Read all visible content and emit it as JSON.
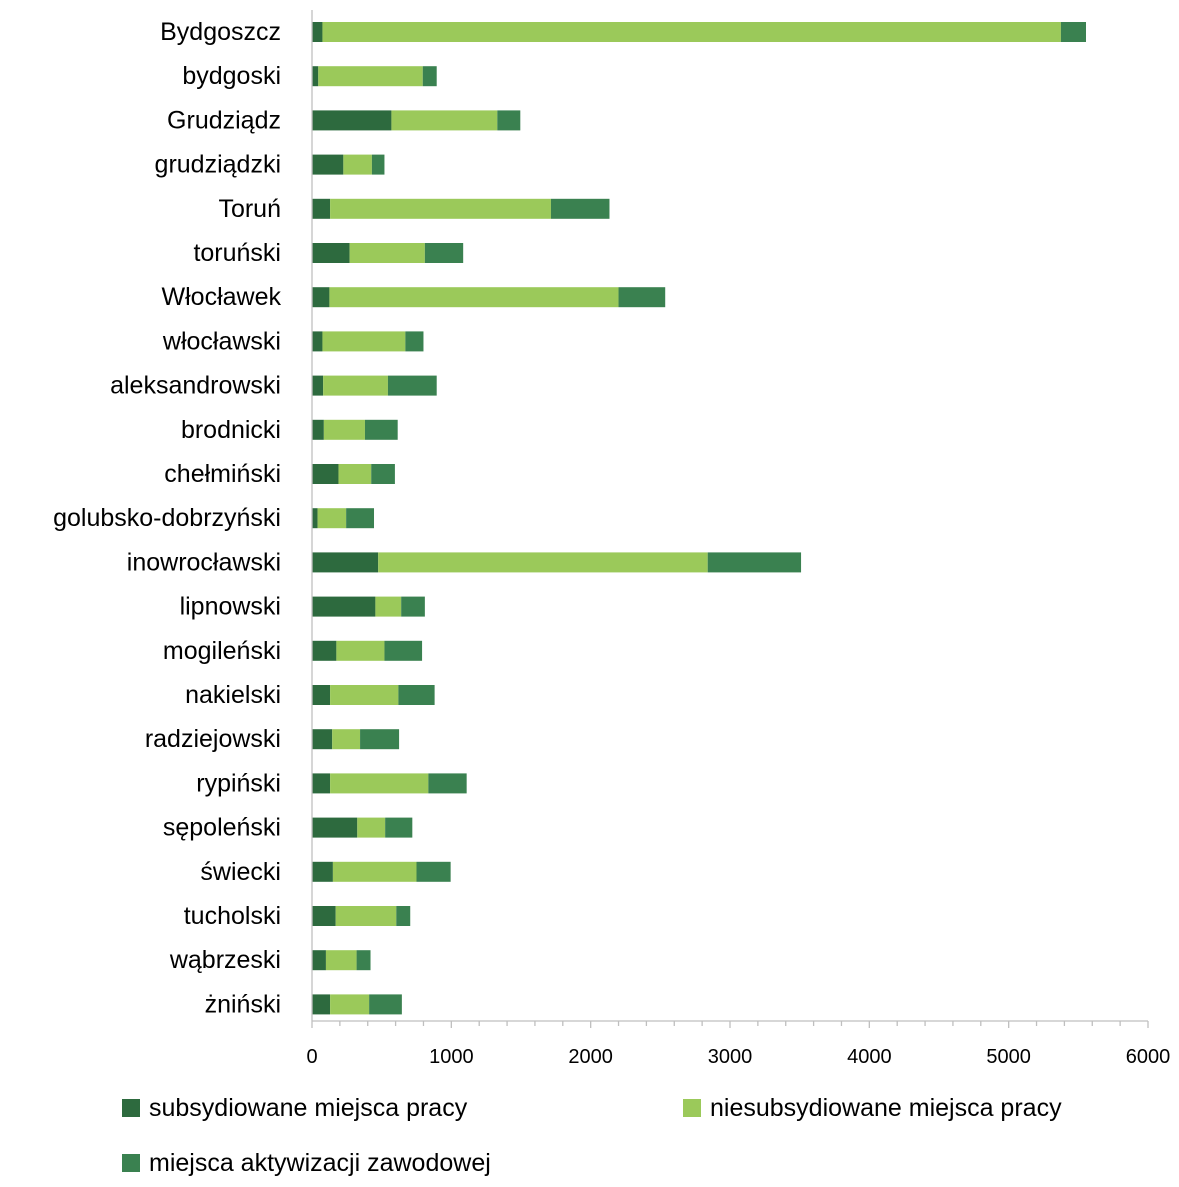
{
  "chart_data": {
    "type": "bar",
    "orientation": "horizontal",
    "stacked": true,
    "title": "",
    "xlabel": "",
    "ylabel": "",
    "xlim": [
      0,
      6000
    ],
    "xticks": [
      0,
      1000,
      2000,
      3000,
      4000,
      5000,
      6000
    ],
    "grid": false,
    "legend_position": "bottom",
    "categories": [
      "Bydgoszcz",
      "bydgoski",
      "Grudziądz",
      "grudziądzki",
      "Toruń",
      "toruński",
      "Włocławek",
      "włocławski",
      "aleksandrowski",
      "brodnicki",
      "chełmiński",
      "golubsko-dobrzyński",
      "inowrocławski",
      "lipnowski",
      "mogileński",
      "nakielski",
      "radziejowski",
      "rypiński",
      "sępoleński",
      "świecki",
      "tucholski",
      "wąbrzeski",
      "żniński"
    ],
    "series": [
      {
        "name": "subsydiowane miejsca pracy",
        "color": "#2d6a3e",
        "values": [
          75,
          45,
          570,
          225,
          130,
          270,
          125,
          75,
          80,
          85,
          190,
          40,
          475,
          455,
          175,
          130,
          145,
          130,
          325,
          150,
          170,
          100,
          130
        ]
      },
      {
        "name": "niesubsydiowane miejsca pracy",
        "color": "#9bc95a",
        "values": [
          5300,
          750,
          760,
          205,
          1585,
          540,
          2075,
          595,
          465,
          295,
          235,
          205,
          2365,
          185,
          345,
          490,
          200,
          705,
          200,
          600,
          435,
          220,
          280
        ]
      },
      {
        "name": "miejsca aktywizacji zawodowej",
        "color": "#3a8150",
        "values": [
          180,
          100,
          165,
          90,
          420,
          275,
          335,
          130,
          350,
          235,
          170,
          200,
          670,
          170,
          270,
          260,
          280,
          275,
          195,
          245,
          100,
          100,
          235
        ]
      }
    ]
  }
}
